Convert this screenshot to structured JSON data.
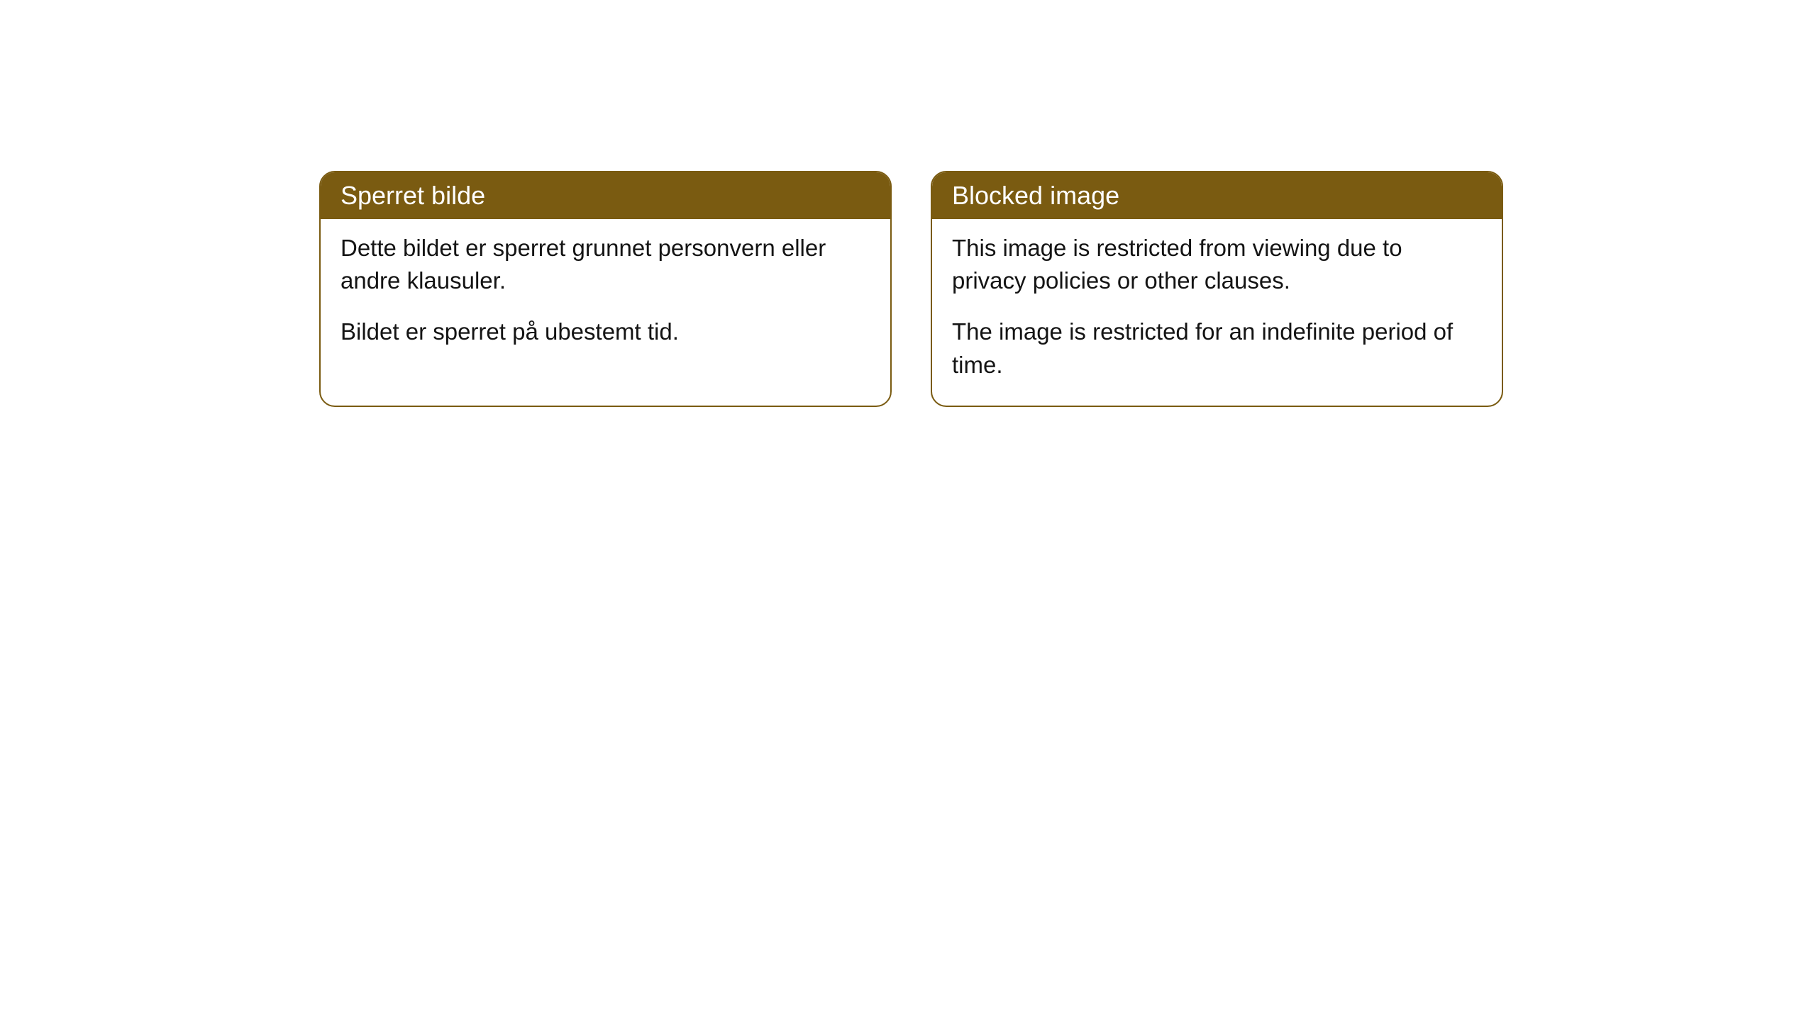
{
  "cards": [
    {
      "title": "Sperret bilde",
      "paragraph1": "Dette bildet er sperret grunnet personvern eller andre klausuler.",
      "paragraph2": "Bildet er sperret på ubestemt tid."
    },
    {
      "title": "Blocked image",
      "paragraph1": "This image is restricted from viewing due to privacy policies or other clauses.",
      "paragraph2": "The image is restricted for an indefinite period of time."
    }
  ],
  "styling": {
    "header_background": "#7a5b11",
    "header_text_color": "#ffffff",
    "border_color": "#7a5b11",
    "body_text_color": "#141414",
    "card_background": "#ffffff",
    "page_background": "#ffffff",
    "border_radius": 22,
    "header_fontsize": 36,
    "body_fontsize": 33
  }
}
